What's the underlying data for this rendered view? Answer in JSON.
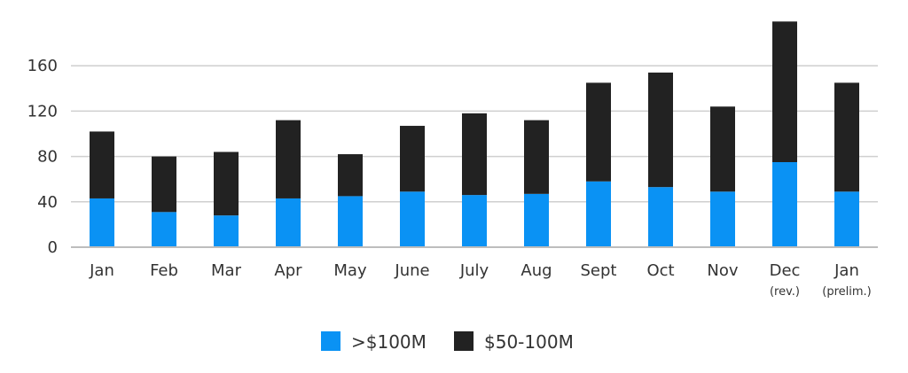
{
  "chart_data": {
    "type": "bar",
    "stacked": true,
    "title": "",
    "xlabel": "",
    "ylabel": "",
    "categories": [
      {
        "label": "Jan",
        "sub": ""
      },
      {
        "label": "Feb",
        "sub": ""
      },
      {
        "label": "Mar",
        "sub": ""
      },
      {
        "label": "Apr",
        "sub": ""
      },
      {
        "label": "May",
        "sub": ""
      },
      {
        "label": "June",
        "sub": ""
      },
      {
        "label": "July",
        "sub": ""
      },
      {
        "label": "Aug",
        "sub": ""
      },
      {
        "label": "Sept",
        "sub": ""
      },
      {
        "label": "Oct",
        "sub": ""
      },
      {
        "label": "Nov",
        "sub": ""
      },
      {
        "label": "Dec",
        "sub": "(rev.)"
      },
      {
        "label": "Jan",
        "sub": "(prelim.)"
      }
    ],
    "series": [
      {
        "name": ">$100M",
        "color": "#0a92f4",
        "values": [
          43,
          31,
          28,
          43,
          45,
          49,
          46,
          47,
          58,
          53,
          49,
          75,
          49
        ]
      },
      {
        "name": "$50-100M",
        "color": "#222222",
        "values": [
          59,
          49,
          56,
          69,
          37,
          58,
          72,
          65,
          87,
          101,
          75,
          124,
          96
        ]
      }
    ],
    "yticks": [
      0,
      40,
      80,
      120,
      160
    ],
    "ylim": [
      0,
      200
    ],
    "grid": true,
    "legend_position": "bottom-center"
  }
}
